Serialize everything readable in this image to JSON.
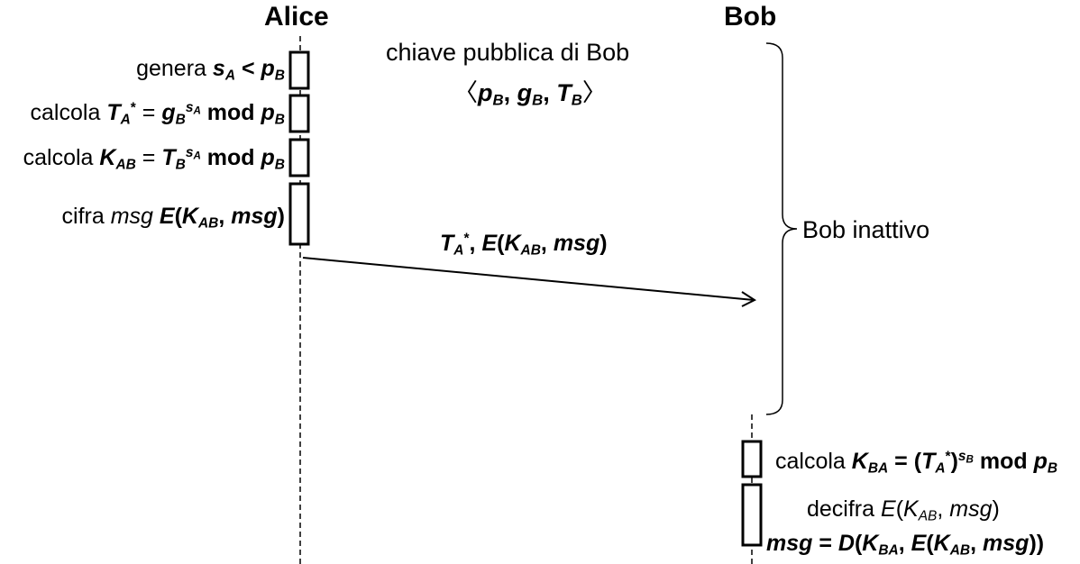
{
  "actors": {
    "alice": "Alice",
    "bob": "Bob"
  },
  "alice_steps": {
    "s1": {
      "verb": "genera",
      "sym1": "s",
      "sub1": "A",
      "op": " < ",
      "sym2": "p",
      "sub2": "B"
    },
    "s2": {
      "verb": "calcola",
      "sym1": "T",
      "sub1": "A",
      "sup1": "*",
      "op": " = ",
      "sym2": "g",
      "sub2": "B",
      "exp": "s",
      "exp_sub": "A",
      "mod": " mod ",
      "sym3": "p",
      "sub3": "B"
    },
    "s3": {
      "verb": "calcola",
      "sym1": "K",
      "sub1": "AB",
      "op": " = ",
      "sym2": "T",
      "sub2": "B",
      "exp": "s",
      "exp_sub": "A",
      "mod": " mod ",
      "sym3": "p",
      "sub3": "B"
    },
    "s4": {
      "verb": "cifra",
      "word": "msg",
      "fn": "E",
      "open": "(",
      "sym": "K",
      "sub": "AB",
      "sep": ", ",
      "arg": "msg",
      "close": ")"
    }
  },
  "public_key": {
    "title": "chiave pubblica di Bob",
    "open": "〈",
    "p": "p",
    "p_sub": "B",
    "g": "g",
    "g_sub": "B",
    "t": "T",
    "t_sub": "B",
    "sep": ", ",
    "close": "〉"
  },
  "bob_idle": "Bob inattivo",
  "message": {
    "sym": "T",
    "sub": "A",
    "sup": "*",
    "sep": ", ",
    "fn": "E",
    "open": "(",
    "k": "K",
    "k_sub": "AB",
    "comma": ", ",
    "arg": "msg",
    "close": ")"
  },
  "bob_steps": {
    "s1": {
      "verb": "calcola",
      "k": "K",
      "k_sub": "BA",
      "op": " = (",
      "t": "T",
      "t_sub": "A",
      "t_sup": "*",
      "close": ")",
      "exp": "s",
      "exp_sub": "B",
      "mod": " mod ",
      "p": "p",
      "p_sub": "B"
    },
    "s2_line1": {
      "verb": "decifra",
      "fn": "E",
      "open": "(",
      "k": "K",
      "k_sub": "AB",
      "sep": ", ",
      "arg": "msg",
      "close": ")"
    },
    "s2_line2": {
      "lhs": "msg",
      "op": " = ",
      "fn": "D",
      "open": "(",
      "k": "K",
      "k_sub": "BA",
      "sep": ", ",
      "fn2": "E",
      "open2": "(",
      "k2": "K",
      "k2_sub": "AB",
      "sep2": ", ",
      "arg": "msg",
      "close": "))"
    }
  }
}
